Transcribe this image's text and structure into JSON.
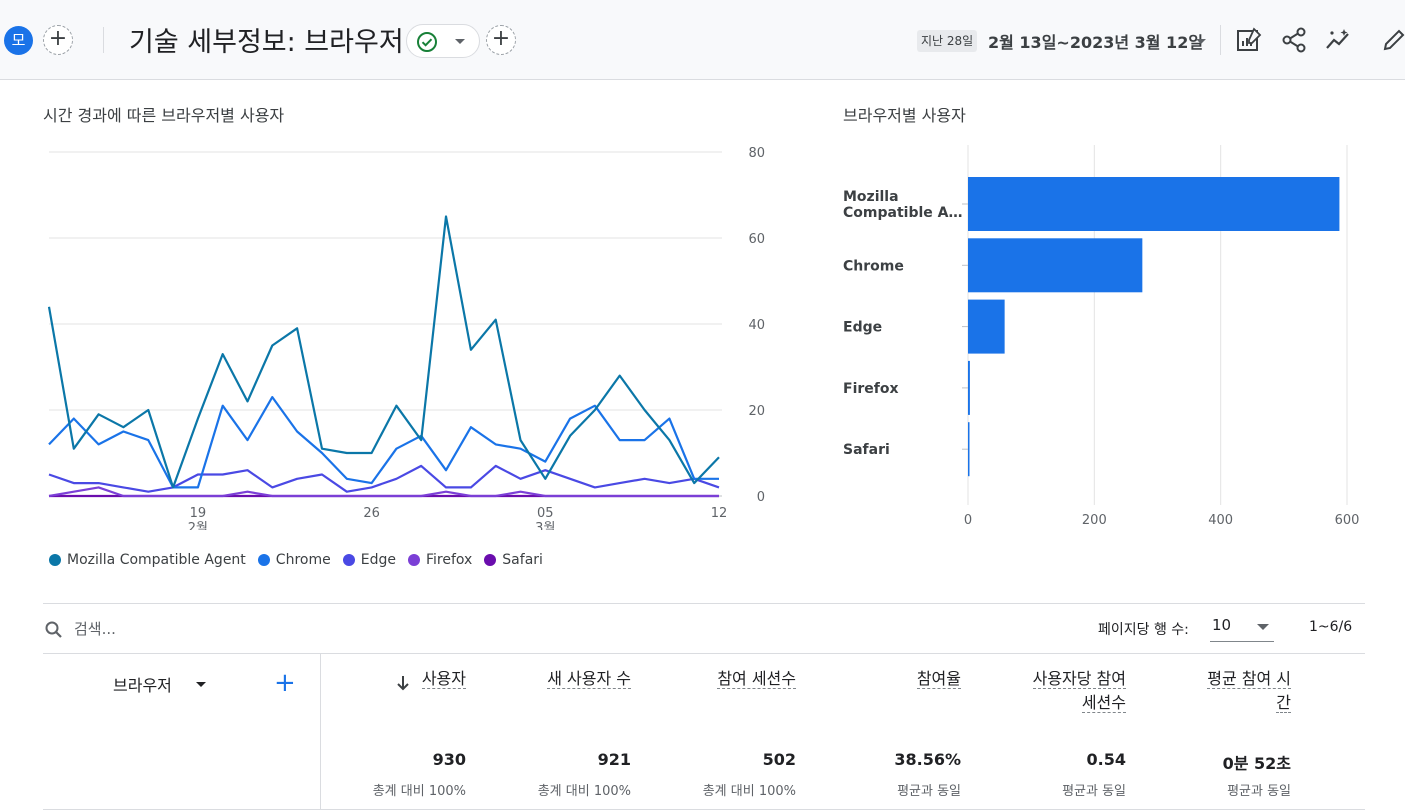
{
  "header": {
    "avatar_letter": "모",
    "title": "기술 세부정보: 브라우저",
    "date_prefix": "지난 28일",
    "date_range": "2월 13일~2023년 3월 12일"
  },
  "colors": {
    "mozilla": "#0b77a8",
    "chrome": "#1a73e8",
    "edge": "#4a49e4",
    "firefox": "#7b3fd6",
    "safari": "#6a0dad",
    "bar": "#1a73e8"
  },
  "icons": [
    "plus-icon",
    "check-circle-icon",
    "chevron-down-icon",
    "customize-report-icon",
    "share-icon",
    "insights-icon",
    "edit-icon",
    "search-icon",
    "arrow-down-icon"
  ],
  "line_title": "시간 경과에 따른 브라우저별 사용자",
  "bar_title": "브라우저별 사용자",
  "chart_data": [
    {
      "type": "line",
      "title": "시간 경과에 따른 브라우저별 사용자",
      "x": [
        "02-13",
        "02-14",
        "02-15",
        "02-16",
        "02-17",
        "02-18",
        "02-19",
        "02-20",
        "02-21",
        "02-22",
        "02-23",
        "02-24",
        "02-25",
        "02-26",
        "02-27",
        "02-28",
        "03-01",
        "03-02",
        "03-03",
        "03-04",
        "03-05",
        "03-06",
        "03-07",
        "03-08",
        "03-09",
        "03-10",
        "03-11",
        "03-12"
      ],
      "x_tick_labels": [
        {
          "day": "19",
          "month": "2월",
          "index": 6
        },
        {
          "day": "26",
          "month": "",
          "index": 13
        },
        {
          "day": "05",
          "month": "3월",
          "index": 20
        },
        {
          "day": "12",
          "month": "",
          "index": 27
        }
      ],
      "y_ticks": [
        "0",
        "20",
        "40",
        "60",
        "80"
      ],
      "ylim": [
        0,
        80
      ],
      "axis_position": "right",
      "grid": true,
      "legend_position": "bottom-left",
      "series": [
        {
          "name": "Mozilla Compatible Agent",
          "values": [
            44,
            11,
            19,
            16,
            20,
            2,
            18,
            33,
            22,
            35,
            39,
            11,
            10,
            10,
            21,
            13,
            65,
            34,
            41,
            13,
            4,
            14,
            20,
            28,
            20,
            13,
            3,
            9
          ]
        },
        {
          "name": "Chrome",
          "values": [
            12,
            18,
            12,
            15,
            13,
            2,
            2,
            21,
            13,
            23,
            15,
            10,
            4,
            3,
            11,
            14,
            6,
            16,
            12,
            11,
            8,
            18,
            21,
            13,
            13,
            18,
            4,
            4
          ]
        },
        {
          "name": "Edge",
          "values": [
            5,
            3,
            3,
            2,
            1,
            2,
            5,
            5,
            6,
            2,
            4,
            5,
            1,
            2,
            4,
            7,
            2,
            2,
            7,
            4,
            6,
            4,
            2,
            3,
            4,
            3,
            4,
            2
          ]
        },
        {
          "name": "Firefox",
          "values": [
            0,
            1,
            2,
            0,
            0,
            0,
            0,
            0,
            1,
            0,
            0,
            0,
            0,
            0,
            0,
            0,
            1,
            0,
            0,
            1,
            0,
            0,
            0,
            0,
            0,
            0,
            0,
            0
          ]
        },
        {
          "name": "Safari",
          "values": [
            0,
            0,
            0,
            0,
            0,
            0,
            0,
            0,
            0,
            0,
            0,
            0,
            0,
            0,
            0,
            0,
            0,
            0,
            0,
            0,
            0,
            0,
            0,
            0,
            0,
            0,
            0,
            0
          ]
        }
      ]
    },
    {
      "type": "bar",
      "orientation": "horizontal",
      "title": "브라우저별 사용자",
      "categories": [
        "Mozilla\nCompatible A…",
        "Chrome",
        "Edge",
        "Firefox",
        "Safari"
      ],
      "values": [
        588,
        276,
        58,
        3,
        1
      ],
      "x_ticks": [
        "0",
        "200",
        "400",
        "600"
      ],
      "xlim": [
        0,
        600
      ],
      "grid": true
    }
  ],
  "table": {
    "search_placeholder": "검색...",
    "rows_per_page_label": "페이지당 행 수:",
    "rows_per_page_value": "10",
    "pager": "1~6/6",
    "dimension_header": "브라우저",
    "columns": [
      {
        "header_line1": "사용자",
        "header_line2": "",
        "total": "930",
        "sub": "총계 대비 100%"
      },
      {
        "header_line1": "새 사용자 수",
        "header_line2": "",
        "total": "921",
        "sub": "총계 대비 100%"
      },
      {
        "header_line1": "참여 세션수",
        "header_line2": "",
        "total": "502",
        "sub": "총계 대비 100%"
      },
      {
        "header_line1": "참여율",
        "header_line2": "",
        "total": "38.56%",
        "sub": "평균과 동일"
      },
      {
        "header_line1": "사용자당 참여",
        "header_line2": "세션수",
        "total": "0.54",
        "sub": "평균과 동일"
      },
      {
        "header_line1": "평균 참여 시",
        "header_line2": "간",
        "total": "0분 52초",
        "sub": "평균과 동일"
      }
    ]
  }
}
